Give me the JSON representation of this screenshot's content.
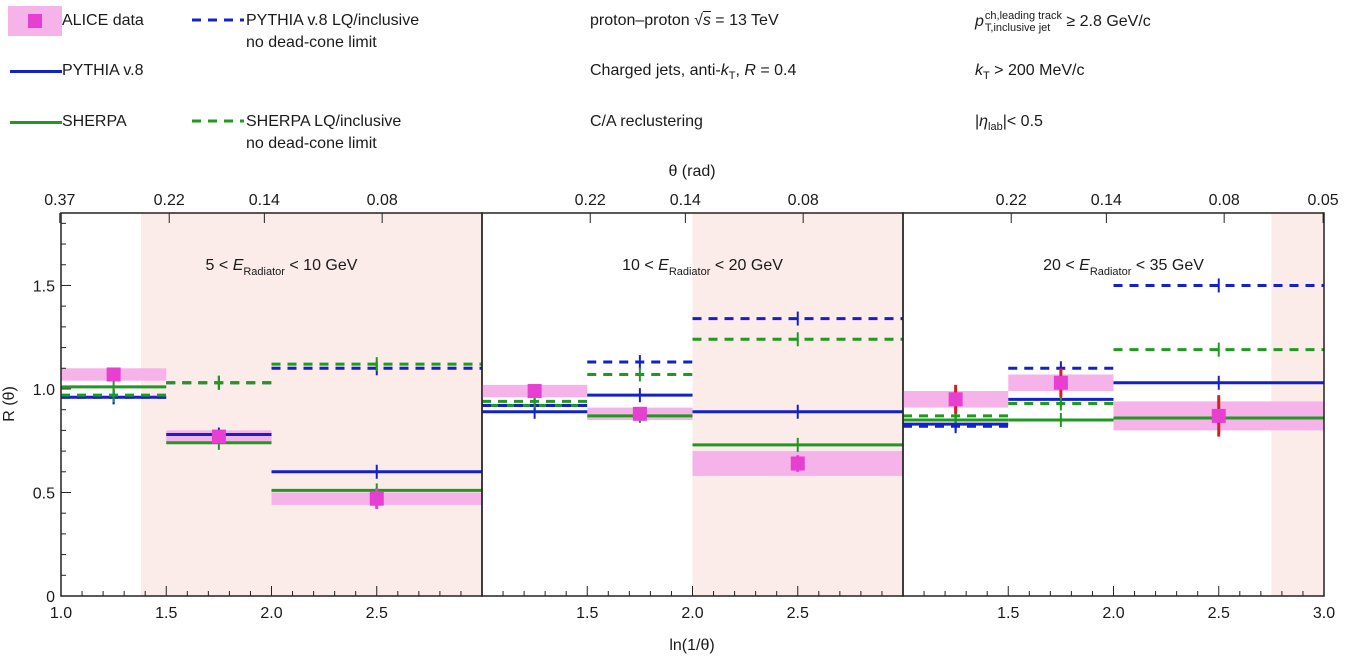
{
  "legend": {
    "alice_label": "ALICE data",
    "pythia_label": "PYTHIA v.8",
    "sherpa_label": "SHERPA",
    "pythia_lq_label_1": "PYTHIA v.8 LQ/inclusive",
    "pythia_lq_label_2": "no dead-cone limit",
    "sherpa_lq_label_1": "SHERPA LQ/inclusive",
    "sherpa_lq_label_2": "no dead-cone limit"
  },
  "info": {
    "collision_prefix": "proton–proton ",
    "collision_sqrt": "√",
    "collision_s": "s",
    "collision_suffix": " = 13 TeV",
    "jets_prefix": "Charged jets, anti-",
    "jets_k": "k",
    "jets_ksub": "T",
    "jets_mid": ", ",
    "jets_R": "R",
    "jets_suffix": " = 0.4",
    "recluster": "C/A reclustering",
    "pt_p": "p",
    "pt_sup": "ch,leading track",
    "pt_sub": "T,inclusive jet",
    "pt_suffix": " ≥ 2.8 GeV/c",
    "kt_k": "k",
    "kt_sub": "T",
    "kt_suffix": " > 200 MeV/c",
    "eta_pre": "|",
    "eta_eta": "η",
    "eta_sub": "lab",
    "eta_suffix": "|< 0.5"
  },
  "colors": {
    "alice": "#e63fd1",
    "alice_band": "#f6b3ea",
    "pythia": "#1420c8",
    "sherpa": "#1f9a1f",
    "shade": "#fbebe9",
    "red_err": "#d42020"
  },
  "chart_data": [
    {
      "type": "line",
      "panel_label": {
        "pre": "5 < ",
        "E": "E",
        "sub": "Radiator",
        "post": " < 10 GeV"
      },
      "xlabel": "ln(1/θ)",
      "top_xlabel": "θ (rad)",
      "ylabel": "R (θ)",
      "xlim": [
        1.0,
        3.0
      ],
      "ylim": [
        0,
        1.85
      ],
      "yticks": [
        "0",
        "0.5",
        "1.0",
        "1.5"
      ],
      "xticks": [
        "1.0",
        "1.5",
        "2.0",
        "2.5"
      ],
      "top_ticks": [
        "0.37",
        "0.22",
        "0.14",
        "0.08"
      ],
      "shaded_region": [
        1.38,
        3.0
      ],
      "bins": [
        [
          1.0,
          1.5
        ],
        [
          1.5,
          2.0
        ],
        [
          2.0,
          3.0
        ]
      ],
      "series": [
        {
          "name": "ALICE data",
          "values": [
            1.07,
            0.77,
            0.47
          ],
          "band": [
            0.03,
            0.03,
            0.03
          ],
          "err": [
            0.02,
            0.03,
            0.05
          ]
        },
        {
          "name": "PYTHIA v.8",
          "values": [
            0.96,
            0.78,
            0.6
          ]
        },
        {
          "name": "SHERPA",
          "values": [
            1.01,
            0.74,
            0.51
          ]
        },
        {
          "name": "PYTHIA v.8 LQ/inclusive",
          "values": [
            0.96,
            1.03,
            1.1
          ]
        },
        {
          "name": "SHERPA LQ/inclusive",
          "values": [
            0.97,
            1.03,
            1.12
          ]
        }
      ]
    },
    {
      "type": "line",
      "panel_label": {
        "pre": "10 < ",
        "E": "E",
        "sub": "Radiator",
        "post": " < 20 GeV"
      },
      "xlim": [
        1.0,
        3.0
      ],
      "xticks": [
        "1.5",
        "2.0",
        "2.5"
      ],
      "top_ticks": [
        "0.22",
        "0.14",
        "0.08"
      ],
      "shaded_region": [
        2.0,
        3.0
      ],
      "bins": [
        [
          1.0,
          1.5
        ],
        [
          1.5,
          2.0
        ],
        [
          2.0,
          3.0
        ]
      ],
      "series": [
        {
          "name": "ALICE data",
          "values": [
            0.99,
            0.88,
            0.64
          ],
          "band": [
            0.03,
            0.03,
            0.06
          ],
          "err": [
            0.02,
            0.03,
            0.04
          ]
        },
        {
          "name": "PYTHIA v.8",
          "values": [
            0.89,
            0.97,
            0.89
          ]
        },
        {
          "name": "SHERPA",
          "values": [
            0.92,
            0.87,
            0.73
          ]
        },
        {
          "name": "PYTHIA v.8 LQ/inclusive",
          "values": [
            0.92,
            1.13,
            1.34
          ]
        },
        {
          "name": "SHERPA LQ/inclusive",
          "values": [
            0.94,
            1.07,
            1.24
          ]
        }
      ]
    },
    {
      "type": "line",
      "panel_label": {
        "pre": "20 < ",
        "E": "E",
        "sub": "Radiator",
        "post": " < 35 GeV"
      },
      "xlim": [
        1.0,
        3.0
      ],
      "xticks": [
        "1.5",
        "2.0",
        "2.5",
        "3.0"
      ],
      "top_ticks": [
        "0.22",
        "0.14",
        "0.08",
        "0.05"
      ],
      "shaded_region": [
        2.75,
        3.0
      ],
      "bins": [
        [
          1.0,
          1.5
        ],
        [
          1.5,
          2.0
        ],
        [
          2.0,
          3.0
        ]
      ],
      "series": [
        {
          "name": "ALICE data",
          "values": [
            0.95,
            1.03,
            0.87
          ],
          "band": [
            0.04,
            0.04,
            0.07
          ],
          "err": [
            0.07,
            0.07,
            0.1
          ]
        },
        {
          "name": "PYTHIA v.8",
          "values": [
            0.83,
            0.95,
            1.03
          ]
        },
        {
          "name": "SHERPA",
          "values": [
            0.85,
            0.85,
            0.86
          ]
        },
        {
          "name": "PYTHIA v.8 LQ/inclusive",
          "values": [
            0.82,
            1.1,
            1.5
          ]
        },
        {
          "name": "SHERPA LQ/inclusive",
          "values": [
            0.87,
            0.93,
            1.19
          ]
        }
      ]
    }
  ]
}
